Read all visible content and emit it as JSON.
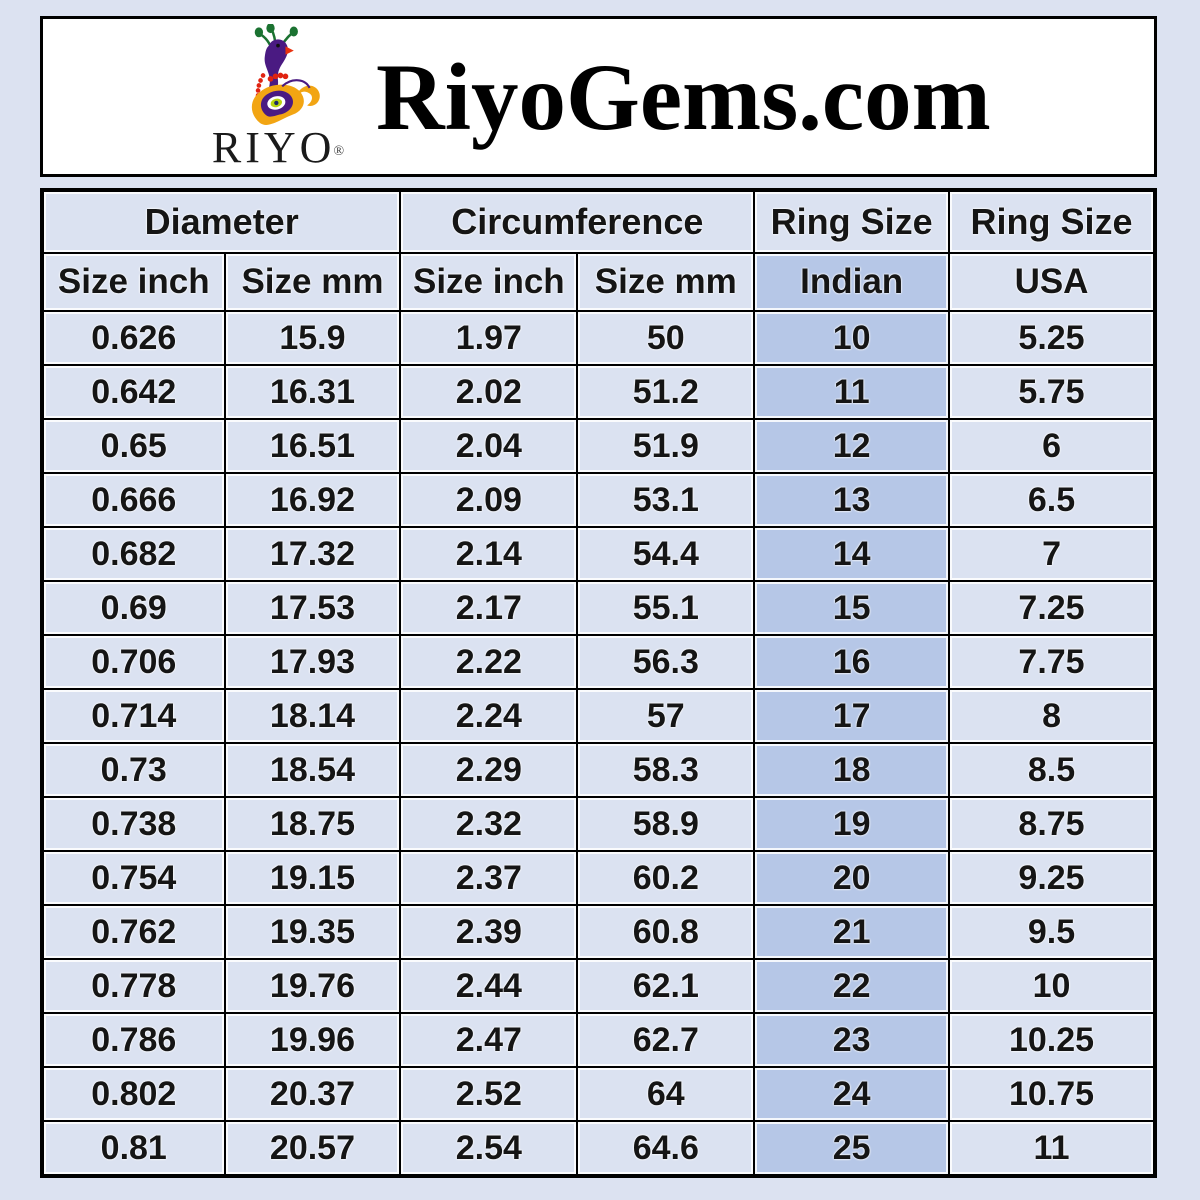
{
  "header": {
    "title": "RiyoGems.com",
    "logo": {
      "brand": "RIYO",
      "registered": "®"
    }
  },
  "table": {
    "group_headers": [
      {
        "label": "Diameter",
        "span": 2
      },
      {
        "label": "Circumference",
        "span": 2
      },
      {
        "label": "Ring Size",
        "span": 1
      },
      {
        "label": "Ring Size",
        "span": 1
      }
    ],
    "sub_headers": [
      "Size inch",
      "Size mm",
      "Size inch",
      "Size mm",
      "Indian",
      "USA"
    ],
    "highlight_column_index": 4,
    "rows": [
      [
        "0.626",
        "15.9",
        "1.97",
        "50",
        "10",
        "5.25"
      ],
      [
        "0.642",
        "16.31",
        "2.02",
        "51.2",
        "11",
        "5.75"
      ],
      [
        "0.65",
        "16.51",
        "2.04",
        "51.9",
        "12",
        "6"
      ],
      [
        "0.666",
        "16.92",
        "2.09",
        "53.1",
        "13",
        "6.5"
      ],
      [
        "0.682",
        "17.32",
        "2.14",
        "54.4",
        "14",
        "7"
      ],
      [
        "0.69",
        "17.53",
        "2.17",
        "55.1",
        "15",
        "7.25"
      ],
      [
        "0.706",
        "17.93",
        "2.22",
        "56.3",
        "16",
        "7.75"
      ],
      [
        "0.714",
        "18.14",
        "2.24",
        "57",
        "17",
        "8"
      ],
      [
        "0.73",
        "18.54",
        "2.29",
        "58.3",
        "18",
        "8.5"
      ],
      [
        "0.738",
        "18.75",
        "2.32",
        "58.9",
        "19",
        "8.75"
      ],
      [
        "0.754",
        "19.15",
        "2.37",
        "60.2",
        "20",
        "9.25"
      ],
      [
        "0.762",
        "19.35",
        "2.39",
        "60.8",
        "21",
        "9.5"
      ],
      [
        "0.778",
        "19.76",
        "2.44",
        "62.1",
        "22",
        "10"
      ],
      [
        "0.786",
        "19.96",
        "2.47",
        "62.7",
        "23",
        "10.25"
      ],
      [
        "0.802",
        "20.37",
        "2.52",
        "64",
        "24",
        "10.75"
      ],
      [
        "0.81",
        "20.57",
        "2.54",
        "64.6",
        "25",
        "11"
      ]
    ],
    "colors": {
      "cell_background": "#dbe2f1",
      "highlight_background": "#b6c7e7",
      "border": "#000000",
      "page_background": "#dce2f1"
    }
  },
  "chart_data": {
    "type": "table",
    "title": "RiyoGems.com ring size conversion chart",
    "column_groups": [
      "Diameter",
      "Diameter",
      "Circumference",
      "Circumference",
      "Ring Size",
      "Ring Size"
    ],
    "columns": [
      "Diameter Size inch",
      "Diameter Size mm",
      "Circumference Size inch",
      "Circumference Size mm",
      "Ring Size Indian",
      "Ring Size USA"
    ],
    "rows": [
      [
        0.626,
        15.9,
        1.97,
        50,
        10,
        5.25
      ],
      [
        0.642,
        16.31,
        2.02,
        51.2,
        11,
        5.75
      ],
      [
        0.65,
        16.51,
        2.04,
        51.9,
        12,
        6
      ],
      [
        0.666,
        16.92,
        2.09,
        53.1,
        13,
        6.5
      ],
      [
        0.682,
        17.32,
        2.14,
        54.4,
        14,
        7
      ],
      [
        0.69,
        17.53,
        2.17,
        55.1,
        15,
        7.25
      ],
      [
        0.706,
        17.93,
        2.22,
        56.3,
        16,
        7.75
      ],
      [
        0.714,
        18.14,
        2.24,
        57,
        17,
        8
      ],
      [
        0.73,
        18.54,
        2.29,
        58.3,
        18,
        8.5
      ],
      [
        0.738,
        18.75,
        2.32,
        58.9,
        19,
        8.75
      ],
      [
        0.754,
        19.15,
        2.37,
        60.2,
        20,
        9.25
      ],
      [
        0.762,
        19.35,
        2.39,
        60.8,
        21,
        9.5
      ],
      [
        0.778,
        19.76,
        2.44,
        62.1,
        22,
        10
      ],
      [
        0.786,
        19.96,
        2.47,
        62.7,
        23,
        10.25
      ],
      [
        0.802,
        20.37,
        2.52,
        64,
        24,
        10.75
      ],
      [
        0.81,
        20.57,
        2.54,
        64.6,
        25,
        11
      ]
    ]
  }
}
